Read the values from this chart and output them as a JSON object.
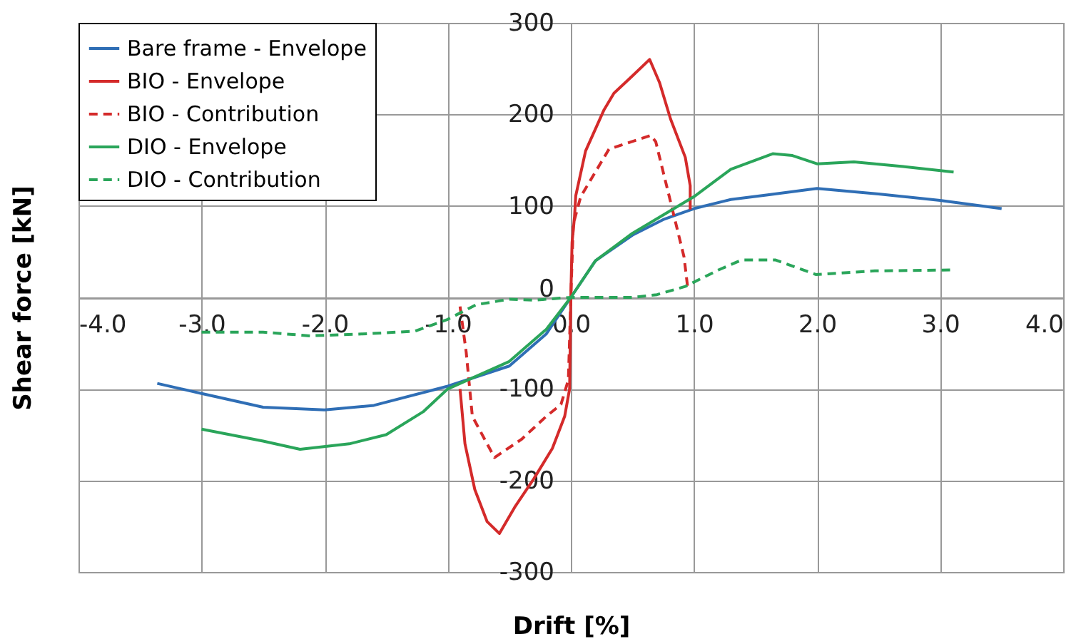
{
  "chart_data": {
    "type": "line",
    "xlabel": "Drift [%]",
    "ylabel": "Shear force [kN]",
    "xlim": [
      -4,
      4
    ],
    "ylim": [
      -300,
      300
    ],
    "xticks": [
      {
        "value": -4,
        "label": "-4.0"
      },
      {
        "value": -3,
        "label": "-3.0"
      },
      {
        "value": -2,
        "label": "-2.0"
      },
      {
        "value": -1,
        "label": "-1.0"
      },
      {
        "value": 0,
        "label": "0.0"
      },
      {
        "value": 1,
        "label": "1.0"
      },
      {
        "value": 2,
        "label": "2.0"
      },
      {
        "value": 3,
        "label": "3.0"
      },
      {
        "value": 4,
        "label": "4.0"
      }
    ],
    "yticks": [
      -300,
      -200,
      -100,
      0,
      100,
      200,
      300
    ],
    "grid": true,
    "legend": "top left",
    "marker": "none",
    "series": [
      {
        "name": "Bare frame - Envelope",
        "color": "#2f6eb5",
        "line_style": "solid",
        "x": [
          -3.36,
          -3.0,
          -2.5,
          -2.0,
          -1.6,
          -1.0,
          -0.5,
          -0.2,
          0,
          0.2,
          0.5,
          0.75,
          1.0,
          1.3,
          1.6,
          2.0,
          2.5,
          3.0,
          3.5
        ],
        "values": [
          -94,
          -105,
          -120,
          -123,
          -118,
          -97,
          -75,
          -40,
          0,
          40,
          68,
          85,
          97,
          107,
          112,
          119,
          113,
          106,
          97
        ]
      },
      {
        "name": "BIO - Envelope",
        "color": "#d42a2a",
        "line_style": "solid",
        "x": [
          -0.9,
          -0.86,
          -0.78,
          -0.68,
          -0.58,
          -0.45,
          -0.3,
          -0.15,
          -0.05,
          -0.01,
          0,
          0.01,
          0.03,
          0.04,
          0.12,
          0.27,
          0.35,
          0.5,
          0.64,
          0.72,
          0.81,
          0.93,
          0.97,
          0.97
        ],
        "values": [
          -100,
          -160,
          -210,
          -245,
          -258,
          -228,
          -198,
          -165,
          -130,
          -100,
          0,
          60,
          88,
          111,
          160,
          205,
          223,
          242,
          260,
          235,
          195,
          153,
          122,
          96
        ]
      },
      {
        "name": "BIO - Contribution",
        "color": "#d42a2a",
        "line_style": "dashed",
        "x": [
          -0.9,
          -0.85,
          -0.8,
          -0.62,
          -0.4,
          -0.2,
          -0.08,
          -0.02,
          0,
          0.02,
          0.08,
          0.31,
          0.65,
          0.69,
          0.8,
          0.92,
          0.95
        ],
        "values": [
          -10,
          -60,
          -130,
          -175,
          -155,
          -130,
          -117,
          -90,
          0,
          80,
          110,
          162,
          177,
          170,
          110,
          44,
          10
        ]
      },
      {
        "name": "DIO - Envelope",
        "color": "#2aa55a",
        "line_style": "solid",
        "x": [
          -3.0,
          -2.5,
          -2.2,
          -1.8,
          -1.5,
          -1.2,
          -1.0,
          -0.5,
          -0.2,
          0,
          0.2,
          0.5,
          0.75,
          1.0,
          1.3,
          1.64,
          1.8,
          2.0,
          2.3,
          2.7,
          3.11
        ],
        "values": [
          -144,
          -157,
          -166,
          -160,
          -150,
          -125,
          -100,
          -70,
          -35,
          0,
          40,
          70,
          90,
          110,
          140,
          157,
          155,
          146,
          148,
          143,
          137
        ]
      },
      {
        "name": "DIO - Contribution",
        "color": "#2aa55a",
        "line_style": "dashed",
        "x": [
          -3.0,
          -2.5,
          -2.12,
          -1.7,
          -1.27,
          -1.0,
          -0.77,
          -0.5,
          -0.3,
          0,
          0.5,
          0.7,
          0.93,
          1.2,
          1.39,
          1.66,
          1.99,
          2.47,
          3.11
        ],
        "values": [
          -38,
          -38,
          -42,
          -40,
          -37,
          -24,
          -8,
          -2,
          -3,
          0,
          0,
          3,
          12,
          30,
          41,
          41,
          25,
          29,
          30
        ]
      }
    ]
  }
}
